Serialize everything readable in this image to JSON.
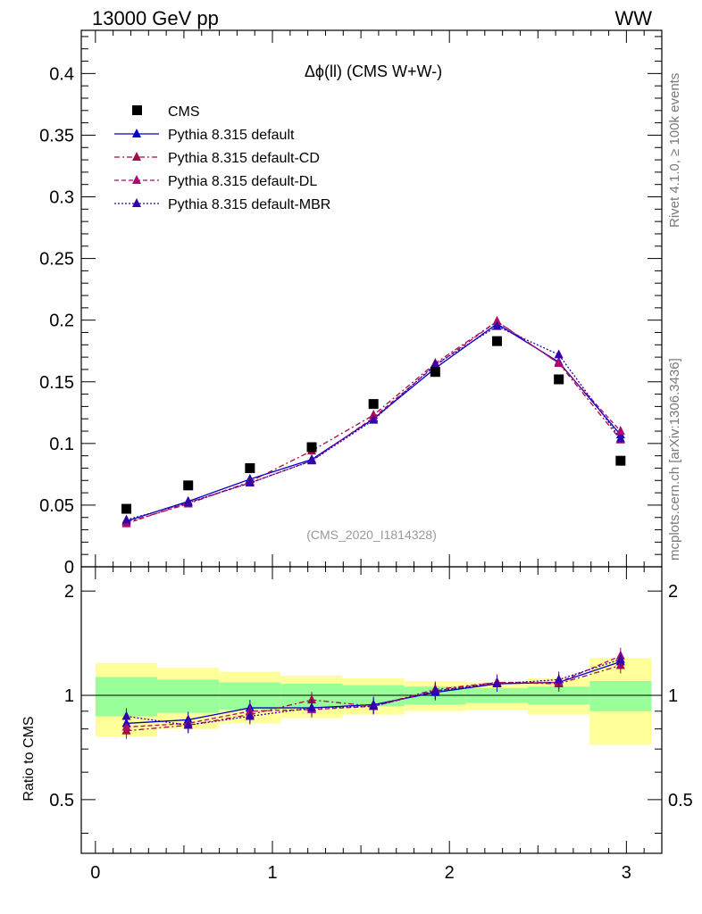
{
  "header": {
    "left": "13000 GeV pp",
    "right": "WW"
  },
  "side_labels": {
    "rivet": "Rivet 4.1.0, ≥ 100k events",
    "mcplots": "mcplots.cern.ch [arXiv:1306.3436]"
  },
  "chart_data": {
    "type": "line",
    "title": "Δϕ(ll) (CMS W+W-)",
    "watermark": "(CMS_2020_I1814328)",
    "xlabel": "",
    "ylabel": "",
    "ratio_ylabel": "Ratio to CMS",
    "xlim": [
      -0.08,
      3.2
    ],
    "ylim": [
      0,
      0.435
    ],
    "ratio_ylim": [
      0.35,
      2.35
    ],
    "x_ticks": [
      "0",
      "1",
      "2",
      "3"
    ],
    "x_tick_values": [
      0,
      1,
      2,
      3
    ],
    "y_ticks": [
      "0",
      "0.05",
      "0.1",
      "0.15",
      "0.2",
      "0.25",
      "0.3",
      "0.35",
      "0.4"
    ],
    "y_tick_values": [
      0,
      0.05,
      0.1,
      0.15,
      0.2,
      0.25,
      0.3,
      0.35,
      0.4
    ],
    "ratio_ticks": [
      "0.5",
      "1",
      "2"
    ],
    "ratio_tick_values": [
      0.5,
      1,
      2
    ],
    "x": [
      0.175,
      0.524,
      0.873,
      1.222,
      1.571,
      1.92,
      2.269,
      2.618,
      2.967
    ],
    "bin_edges": [
      0,
      0.349,
      0.698,
      1.047,
      1.396,
      1.745,
      2.094,
      2.443,
      2.793,
      3.142
    ],
    "data": {
      "name": "CMS",
      "values": [
        0.047,
        0.066,
        0.08,
        0.097,
        0.132,
        0.158,
        0.183,
        0.152,
        0.086
      ],
      "ratio_band_inner": [
        0.13,
        0.11,
        0.09,
        0.08,
        0.07,
        0.06,
        0.05,
        0.06,
        0.1
      ],
      "ratio_band_outer": [
        0.24,
        0.2,
        0.17,
        0.14,
        0.12,
        0.1,
        0.09,
        0.12,
        0.28
      ]
    },
    "series": [
      {
        "name": "Pythia 8.315 default",
        "color": "#0000cc",
        "dash": "",
        "values": [
          0.037,
          0.053,
          0.071,
          0.087,
          0.12,
          0.161,
          0.197,
          0.166,
          0.107
        ],
        "ratio": [
          0.83,
          0.85,
          0.92,
          0.92,
          0.94,
          1.02,
          1.08,
          1.09,
          1.25
        ]
      },
      {
        "name": "Pythia 8.315 default-CD",
        "color": "#a10d45",
        "dash": "6,3,2,3",
        "values": [
          0.036,
          0.051,
          0.069,
          0.094,
          0.123,
          0.165,
          0.199,
          0.165,
          0.103
        ],
        "ratio": [
          0.79,
          0.82,
          0.88,
          0.97,
          0.93,
          1.04,
          1.09,
          1.08,
          1.22
        ]
      },
      {
        "name": "Pythia 8.315 default-DL",
        "color": "#b0086d",
        "dash": "5,3",
        "values": [
          0.035,
          0.052,
          0.068,
          0.086,
          0.121,
          0.163,
          0.199,
          0.165,
          0.11
        ],
        "ratio": [
          0.81,
          0.83,
          0.9,
          0.91,
          0.93,
          1.03,
          1.09,
          1.09,
          1.3
        ]
      },
      {
        "name": "Pythia 8.315 default-MBR",
        "color": "#3300aa",
        "dash": "2,2",
        "values": [
          0.038,
          0.052,
          0.068,
          0.086,
          0.119,
          0.164,
          0.195,
          0.172,
          0.104
        ],
        "ratio": [
          0.87,
          0.82,
          0.87,
          0.92,
          0.93,
          1.03,
          1.08,
          1.11,
          1.27
        ]
      }
    ]
  }
}
